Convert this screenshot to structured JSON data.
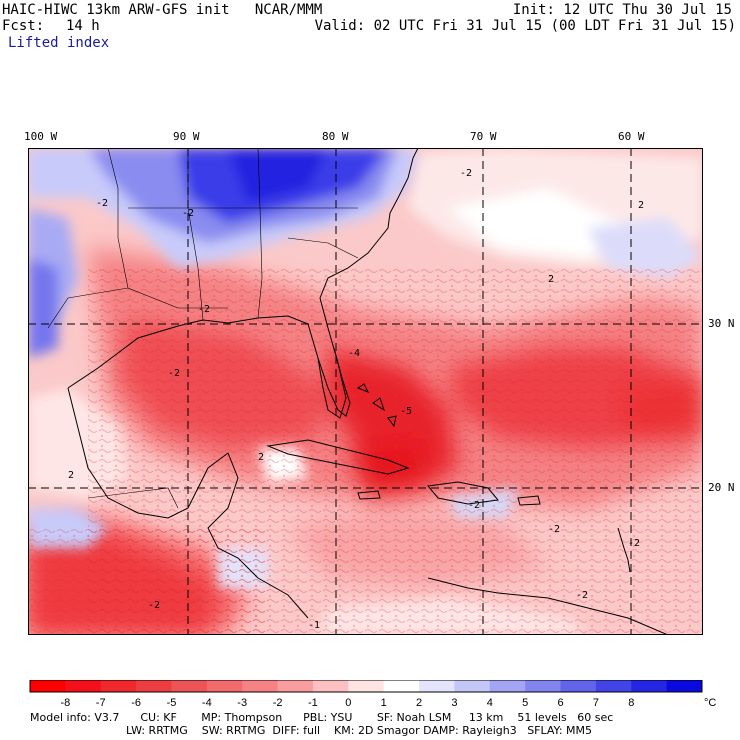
{
  "header": {
    "title_left": "HAIC-HIWC 13km ARW-GFS init   NCAR/MMM",
    "init": "Init: 12 UTC Thu 30 Jul 15",
    "fcst_label": "Fcst:",
    "fcst_value": "14 h",
    "valid": "Valid: 02 UTC Fri 31 Jul 15 (00 LDT Fri 31 Jul 15)",
    "field": "Lifted index"
  },
  "map": {
    "lon_labels": [
      "100 W",
      "90 W",
      "80 W",
      "70 W",
      "60 W"
    ],
    "lat_labels": [
      "30 N",
      "20 N"
    ],
    "contour_labels": [
      "-2",
      "-2",
      "-2",
      "-2",
      "-2",
      "-4",
      "-5",
      "-2",
      "-2",
      "-2",
      "-2",
      "2",
      "-1",
      "2",
      "2",
      "2",
      "-2"
    ],
    "colors": {
      "strong_negative": "#e8101a",
      "moderate_negative": "#f46a6c",
      "weak_negative": "#fbc0c0",
      "neutral": "#ffffff",
      "weak_positive": "#d6d8f8",
      "strong_positive": "#2c2ce8",
      "border": "#000000",
      "grid": "#000000"
    }
  },
  "colorbar": {
    "ticks": [
      "-8",
      "-7",
      "-6",
      "-5",
      "-4",
      "-3",
      "-2",
      "-1",
      "0",
      "1",
      "2",
      "3",
      "4",
      "5",
      "6",
      "7",
      "8"
    ],
    "unit": "°C",
    "colors": [
      "#ff0000",
      "#f4101a",
      "#f0282c",
      "#ec3e40",
      "#ee5456",
      "#f26a6c",
      "#f68286",
      "#f99ea0",
      "#fcc0c2",
      "#ffe4e4",
      "#ffffff",
      "#e4e4fc",
      "#c4c6f8",
      "#a2a4f4",
      "#8284f0",
      "#6264ec",
      "#4244e8",
      "#2426e4",
      "#0a0ae0"
    ]
  },
  "model_info": {
    "line1": "Model info: V3.7      CU: KF       MP: Thompson      PBL: YSU       SF: Noah LSM     13 km    51 levels   60 sec",
    "line2": "LW: RRTMG    SW: RRTMG  DIFF: full    KM: 2D Smagor DAMP: Rayleigh3   SFLAY: MM5"
  }
}
